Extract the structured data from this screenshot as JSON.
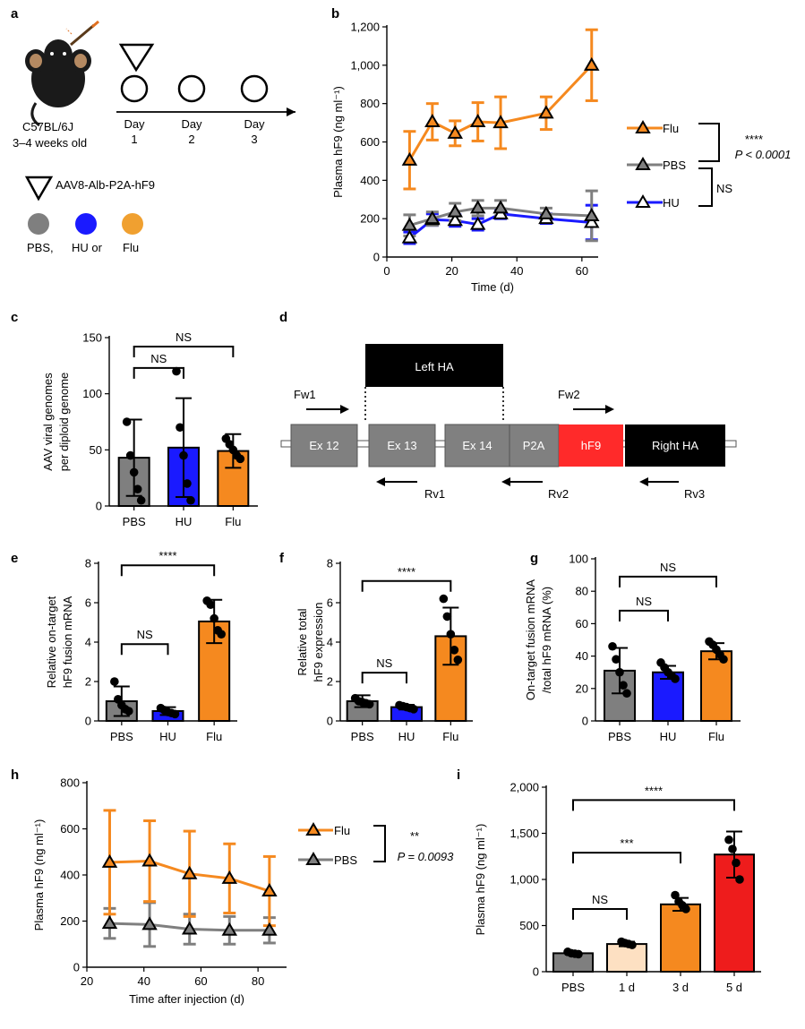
{
  "panels": {
    "a": "a",
    "b": "b",
    "c": "c",
    "d": "d",
    "e": "e",
    "f": "f",
    "g": "g",
    "h": "h",
    "i": "i"
  },
  "colors": {
    "flu": "#f5891f",
    "pbs": "#7f7f7f",
    "hu": "#1a1aff",
    "aav": "#1a1a1a",
    "hf9": "#ff2a2a",
    "lightpeach": "#fde0c2",
    "red": "#ee1c1c"
  },
  "panel_a": {
    "mouse_strain": "C57BL/6J",
    "mouse_age": "3–4 weeks old",
    "days": [
      {
        "word": "Day",
        "num": "1"
      },
      {
        "word": "Day",
        "num": "2"
      },
      {
        "word": "Day",
        "num": "3"
      }
    ],
    "aav_label": "AAV8-Alb-P2A-hF9",
    "treat1": "PBS,",
    "treat2": "HU or",
    "treat3": "Flu"
  },
  "panel_d": {
    "boxes": [
      "Ex 12",
      "Ex 13",
      "Ex 14",
      "P2A",
      "hF9",
      "Right HA"
    ],
    "left_ha": "Left HA",
    "primers": [
      "Fw1",
      "Fw2",
      "Rv1",
      "Rv2",
      "Rv3"
    ]
  },
  "chart_data": [
    {
      "id": "b",
      "type": "line",
      "xlabel": "Time (d)",
      "ylabel": "Plasma hF9 (ng ml⁻¹)",
      "xlim": [
        0,
        65
      ],
      "ylim": [
        0,
        1200
      ],
      "xticks": [
        {
          "v": 0,
          "label": "0"
        },
        {
          "v": 20,
          "label": "20"
        },
        {
          "v": 40,
          "label": "40"
        },
        {
          "v": 60,
          "label": "60"
        }
      ],
      "yticks": [
        {
          "v": 0,
          "label": "0"
        },
        {
          "v": 200,
          "label": "200"
        },
        {
          "v": 400,
          "label": "400"
        },
        {
          "v": 600,
          "label": "600"
        },
        {
          "v": 800,
          "label": "800"
        },
        {
          "v": 1000,
          "label": "1,000"
        },
        {
          "v": 1200,
          "label": "1,200"
        }
      ],
      "series": [
        {
          "name": "Flu",
          "color": "#f5891f",
          "fill": "#f5891f",
          "x": [
            7,
            14,
            21,
            28,
            35,
            49,
            63
          ],
          "y": [
            505,
            705,
            645,
            705,
            700,
            750,
            1000
          ],
          "err": [
            150,
            95,
            65,
            100,
            135,
            85,
            185
          ]
        },
        {
          "name": "PBS",
          "color": "#7f7f7f",
          "fill": "#7f7f7f",
          "x": [
            7,
            14,
            21,
            28,
            35,
            49,
            63
          ],
          "y": [
            165,
            200,
            235,
            255,
            255,
            225,
            215
          ],
          "err": [
            55,
            35,
            45,
            40,
            40,
            30,
            130
          ]
        },
        {
          "name": "HU",
          "color": "#1a1aff",
          "fill": "#ffffff",
          "x": [
            7,
            14,
            21,
            28,
            35,
            49,
            63
          ],
          "y": [
            100,
            195,
            190,
            170,
            225,
            200,
            180
          ],
          "err": [
            30,
            30,
            30,
            30,
            25,
            25,
            90
          ]
        }
      ],
      "stats": {
        "top": "****",
        "top_p": "P < 0.0001",
        "bottom": "NS"
      }
    },
    {
      "id": "c",
      "type": "bar",
      "ylabel": "AAV viral genomes per diploid genome",
      "ylabel_lines": [
        "AAV viral genomes",
        "per diploid genome"
      ],
      "ylim": [
        0,
        150
      ],
      "yticks": [
        {
          "v": 0,
          "label": "0"
        },
        {
          "v": 50,
          "label": "50"
        },
        {
          "v": 100,
          "label": "100"
        },
        {
          "v": 150,
          "label": "150"
        }
      ],
      "categories": [
        "PBS",
        "HU",
        "Flu"
      ],
      "values": [
        43,
        52,
        49
      ],
      "err": [
        34,
        44,
        15
      ],
      "colors": [
        "#7f7f7f",
        "#1a1aff",
        "#f5891f"
      ],
      "points": [
        [
          75,
          45,
          30,
          15,
          5
        ],
        [
          120,
          70,
          45,
          20,
          5
        ],
        [
          60,
          55,
          50,
          45,
          42
        ]
      ],
      "brackets": [
        {
          "from": 0,
          "to": 1,
          "y": 123,
          "label": "NS"
        },
        {
          "from": 0,
          "to": 2,
          "y": 142,
          "label": "NS"
        }
      ]
    },
    {
      "id": "e",
      "type": "bar",
      "ylabel": "Relative on-target hF9 fusion mRNA",
      "ylabel_lines": [
        "Relative on-target",
        "hF9 fusion mRNA"
      ],
      "ylim": [
        0,
        8
      ],
      "yticks": [
        {
          "v": 0,
          "label": "0"
        },
        {
          "v": 2,
          "label": "2"
        },
        {
          "v": 4,
          "label": "4"
        },
        {
          "v": 6,
          "label": "6"
        },
        {
          "v": 8,
          "label": "8"
        }
      ],
      "categories": [
        "PBS",
        "HU",
        "Flu"
      ],
      "values": [
        1,
        0.5,
        5.05
      ],
      "err": [
        0.75,
        0.2,
        1.1
      ],
      "colors": [
        "#7f7f7f",
        "#1a1aff",
        "#f5891f"
      ],
      "points": [
        [
          2.0,
          1.1,
          0.8,
          0.6,
          0.5
        ],
        [
          0.65,
          0.55,
          0.45,
          0.4,
          0.35
        ],
        [
          6.1,
          5.9,
          5.2,
          4.6,
          4.4
        ]
      ],
      "brackets": [
        {
          "from": 0,
          "to": 1,
          "y": 3.9,
          "label": "NS"
        },
        {
          "from": 0,
          "to": 2,
          "y": 7.9,
          "label": "****"
        }
      ]
    },
    {
      "id": "f",
      "type": "bar",
      "ylabel": "Relative total hF9 expression",
      "ylabel_lines": [
        "Relative total",
        "hF9 expression"
      ],
      "ylim": [
        0,
        8
      ],
      "yticks": [
        {
          "v": 0,
          "label": "0"
        },
        {
          "v": 2,
          "label": "2"
        },
        {
          "v": 4,
          "label": "4"
        },
        {
          "v": 6,
          "label": "6"
        },
        {
          "v": 8,
          "label": "8"
        }
      ],
      "categories": [
        "PBS",
        "HU",
        "Flu"
      ],
      "values": [
        1,
        0.7,
        4.3
      ],
      "err": [
        0.3,
        0.12,
        1.45
      ],
      "colors": [
        "#7f7f7f",
        "#1a1aff",
        "#f5891f"
      ],
      "points": [
        [
          1.15,
          1.0,
          0.95,
          0.9,
          0.85
        ],
        [
          0.8,
          0.75,
          0.7,
          0.65,
          0.6
        ],
        [
          6.2,
          5.3,
          4.4,
          3.6,
          3.1
        ]
      ],
      "brackets": [
        {
          "from": 0,
          "to": 1,
          "y": 2.45,
          "label": "NS"
        },
        {
          "from": 0,
          "to": 2,
          "y": 7.1,
          "label": "****"
        }
      ]
    },
    {
      "id": "g",
      "type": "bar",
      "ylabel": "On-target fusion mRNA /total hF9 mRNA (%)",
      "ylabel_lines": [
        "On-target fusion mRNA",
        "/total hF9 mRNA (%)"
      ],
      "ylim": [
        0,
        100
      ],
      "yticks": [
        {
          "v": 0,
          "label": "0"
        },
        {
          "v": 20,
          "label": "20"
        },
        {
          "v": 40,
          "label": "40"
        },
        {
          "v": 60,
          "label": "60"
        },
        {
          "v": 80,
          "label": "80"
        },
        {
          "v": 100,
          "label": "100"
        }
      ],
      "categories": [
        "PBS",
        "HU",
        "Flu"
      ],
      "values": [
        31,
        30,
        43
      ],
      "err": [
        14,
        4,
        5
      ],
      "colors": [
        "#7f7f7f",
        "#1a1aff",
        "#f5891f"
      ],
      "points": [
        [
          46,
          38,
          30,
          22,
          17
        ],
        [
          36,
          33,
          30,
          28,
          26
        ],
        [
          49,
          47,
          44,
          41,
          38
        ]
      ],
      "brackets": [
        {
          "from": 0,
          "to": 1,
          "y": 68,
          "label": "NS"
        },
        {
          "from": 0,
          "to": 2,
          "y": 89,
          "label": "NS"
        }
      ]
    },
    {
      "id": "h",
      "type": "line",
      "xlabel": "Time after injection (d)",
      "ylabel": "Plasma hF9 (ng ml⁻¹)",
      "xlim": [
        20,
        90
      ],
      "ylim": [
        0,
        800
      ],
      "xticks": [
        {
          "v": 20,
          "label": "20"
        },
        {
          "v": 40,
          "label": "40"
        },
        {
          "v": 60,
          "label": "60"
        },
        {
          "v": 80,
          "label": "80"
        }
      ],
      "yticks": [
        {
          "v": 0,
          "label": "0"
        },
        {
          "v": 200,
          "label": "200"
        },
        {
          "v": 400,
          "label": "400"
        },
        {
          "v": 600,
          "label": "600"
        },
        {
          "v": 800,
          "label": "800"
        }
      ],
      "series": [
        {
          "name": "Flu",
          "color": "#f5891f",
          "fill": "#f5891f",
          "x": [
            28,
            42,
            56,
            70,
            84
          ],
          "y": [
            455,
            460,
            405,
            385,
            330
          ],
          "err": [
            225,
            175,
            185,
            150,
            150
          ]
        },
        {
          "name": "PBS",
          "color": "#7f7f7f",
          "fill": "#7f7f7f",
          "x": [
            28,
            42,
            56,
            70,
            84
          ],
          "y": [
            190,
            185,
            165,
            160,
            160
          ],
          "err": [
            65,
            95,
            65,
            60,
            55
          ]
        }
      ],
      "stats": {
        "top": "**",
        "top_p": "P = 0.0093"
      }
    },
    {
      "id": "i",
      "type": "bar",
      "ylabel": "Plasma hF9 (ng ml⁻¹)",
      "ylim": [
        0,
        2000
      ],
      "yticks": [
        {
          "v": 0,
          "label": "0"
        },
        {
          "v": 500,
          "label": "500"
        },
        {
          "v": 1000,
          "label": "1,000"
        },
        {
          "v": 1500,
          "label": "1,500"
        },
        {
          "v": 2000,
          "label": "2,000"
        }
      ],
      "categories": [
        "PBS",
        "1 d",
        "3 d",
        "5 d"
      ],
      "values": [
        200,
        300,
        730,
        1270
      ],
      "err": [
        15,
        25,
        70,
        250
      ],
      "colors": [
        "#7f7f7f",
        "#fde0c2",
        "#f5891f",
        "#ee1c1c"
      ],
      "points": [
        [
          215,
          200,
          195,
          190
        ],
        [
          325,
          310,
          300,
          290
        ],
        [
          830,
          760,
          720,
          680
        ],
        [
          1430,
          1330,
          1180,
          1000
        ]
      ],
      "brackets": [
        {
          "from": 0,
          "to": 1,
          "y": 680,
          "label": "NS"
        },
        {
          "from": 0,
          "to": 2,
          "y": 1290,
          "label": "***"
        },
        {
          "from": 0,
          "to": 3,
          "y": 1860,
          "label": "****"
        }
      ]
    }
  ]
}
